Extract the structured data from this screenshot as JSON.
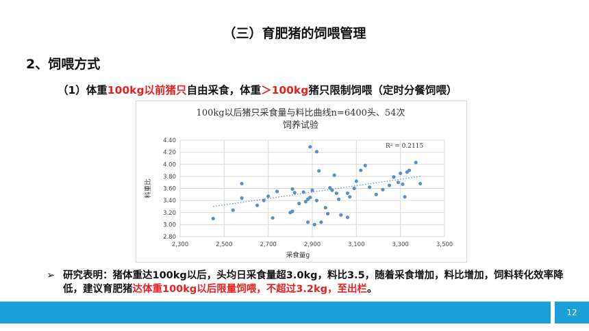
{
  "slide": {
    "title": "（三）育肥猪的饲喂管理",
    "heading": "2、饲喂方式",
    "subline": {
      "p1": "（1）体重",
      "p2": "100kg以前猪只",
      "p3": "自由采食，体重",
      "p4": "＞100kg",
      "p5": "猪只限制饲喂（定时分餐饲喂）"
    },
    "bullet": {
      "icon": "arrow-right-icon",
      "t1": "研究表明：猪体重达100kg以后，头均日采食量超3.0kg，料比3.5，随着采食增加，料比增加，饲料转化效率降低，建议育肥猪",
      "t2": "达体重100kg以后限量饲喂，不超过3.2kg，至出栏",
      "t3": "。"
    },
    "page_number": "12",
    "colors": {
      "accent": "#1aa0d6",
      "highlight": "#e8201e",
      "points": "#5b8fc9"
    }
  },
  "chart_data": {
    "type": "scatter",
    "title_line1": "100kg以后猪只采食量与料比曲线n=6400头、54次",
    "title_line2": "饲养试验",
    "xlabel": "采食量g",
    "ylabel": "料重比",
    "r2_label": "R² = 0.2115",
    "xlim": [
      2300,
      3500
    ],
    "ylim": [
      2.8,
      4.4
    ],
    "xticks": [
      "2,300",
      "2,500",
      "2,700",
      "2,900",
      "3,100",
      "3,300",
      "3,500"
    ],
    "yticks": [
      "2.80",
      "3.00",
      "3.20",
      "3.40",
      "3.60",
      "3.80",
      "4.00",
      "4.20",
      "4.40"
    ],
    "grid": true,
    "trendline": {
      "style": "dotted",
      "x": [
        2450,
        3390
      ],
      "y": [
        3.3,
        3.8
      ]
    },
    "points": [
      [
        2450,
        3.1
      ],
      [
        2540,
        3.24
      ],
      [
        2580,
        3.68
      ],
      [
        2580,
        3.44
      ],
      [
        2650,
        3.32
      ],
      [
        2680,
        3.4
      ],
      [
        2700,
        3.47
      ],
      [
        2720,
        3.11
      ],
      [
        2740,
        3.55
      ],
      [
        2800,
        3.2
      ],
      [
        2810,
        3.22
      ],
      [
        2810,
        3.59
      ],
      [
        2820,
        3.53
      ],
      [
        2840,
        3.35
      ],
      [
        2860,
        3.54
      ],
      [
        2870,
        3.38
      ],
      [
        2880,
        3.42
      ],
      [
        2880,
        3.04
      ],
      [
        2890,
        4.29
      ],
      [
        2890,
        3.45
      ],
      [
        2900,
        3.57
      ],
      [
        2910,
        3.0
      ],
      [
        2920,
        3.4
      ],
      [
        2920,
        4.21
      ],
      [
        2930,
        3.89
      ],
      [
        2940,
        3.04
      ],
      [
        2960,
        3.28
      ],
      [
        2970,
        3.18
      ],
      [
        2980,
        3.61
      ],
      [
        2990,
        3.57
      ],
      [
        3000,
        3.82
      ],
      [
        3010,
        3.52
      ],
      [
        3020,
        3.42
      ],
      [
        3030,
        3.16
      ],
      [
        3060,
        3.12
      ],
      [
        3060,
        3.52
      ],
      [
        3070,
        3.46
      ],
      [
        3090,
        3.6
      ],
      [
        3100,
        3.72
      ],
      [
        3120,
        3.9
      ],
      [
        3140,
        3.98
      ],
      [
        3160,
        3.62
      ],
      [
        3190,
        3.5
      ],
      [
        3220,
        3.58
      ],
      [
        3250,
        3.65
      ],
      [
        3270,
        3.79
      ],
      [
        3290,
        3.7
      ],
      [
        3300,
        3.85
      ],
      [
        3310,
        3.67
      ],
      [
        3320,
        3.46
      ],
      [
        3330,
        3.87
      ],
      [
        3340,
        3.9
      ],
      [
        3370,
        4.03
      ],
      [
        3390,
        3.68
      ]
    ]
  }
}
